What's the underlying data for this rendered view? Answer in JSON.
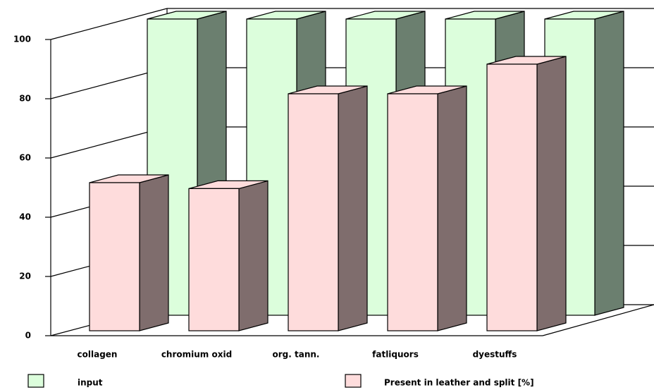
{
  "chart_data": {
    "type": "bar3d",
    "categories": [
      "collagen",
      "chromium oxid",
      "org. tann.",
      "fatliquors",
      "dyestuffs"
    ],
    "series": [
      {
        "name": "input",
        "color": "#dcfedc",
        "side_color": "#6b7f6f",
        "values": [
          100,
          100,
          100,
          100,
          100
        ]
      },
      {
        "name": "Present in leather and split [%]",
        "color": "#fedcdc",
        "side_color": "#7f6d6d",
        "values": [
          50,
          48,
          80,
          80,
          90
        ]
      }
    ],
    "ylim": [
      0,
      100
    ],
    "yticks": [
      0,
      20,
      40,
      60,
      80,
      100
    ],
    "grid": true
  }
}
